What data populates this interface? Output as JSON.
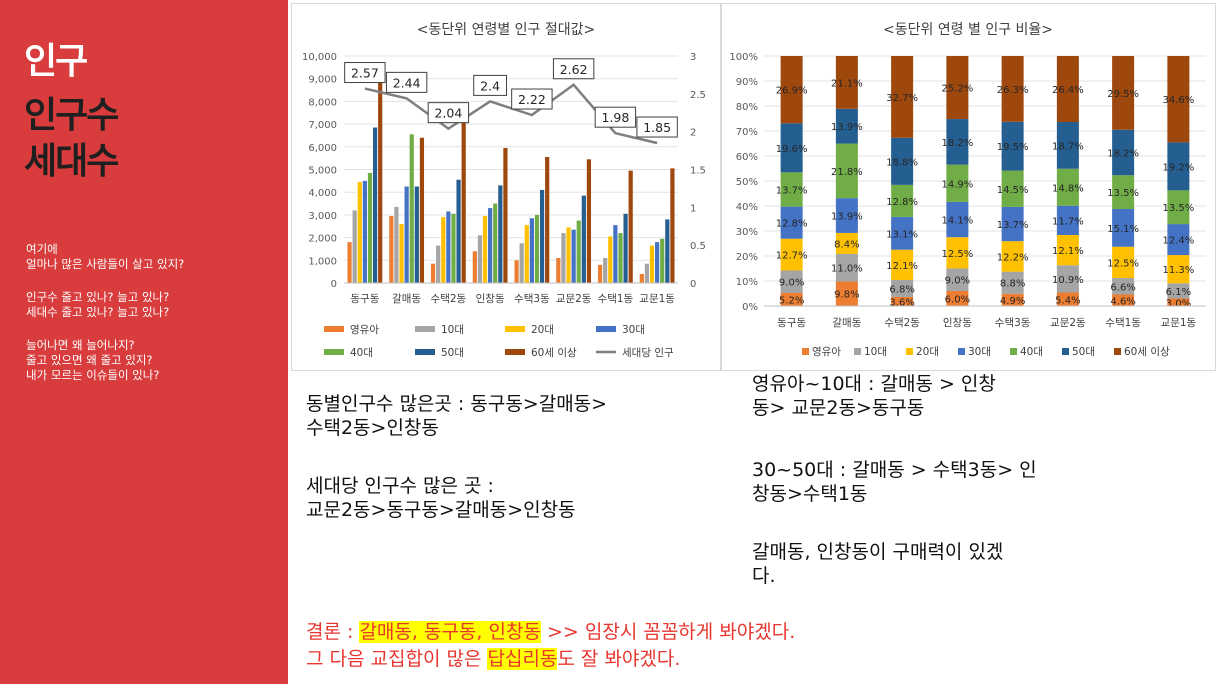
{
  "sidebar": {
    "title_lines": [
      "인구",
      "인구수",
      "세대수"
    ],
    "question_groups": [
      [
        "여기에",
        "얼마나 많은 사람들이 살고 있지?"
      ],
      [
        "인구수 줄고 있나? 늘고 있나?",
        "세대수 줄고 있나? 늘고 있나?"
      ],
      [
        "늘어나면 왜 늘어나지?",
        "줄고 있으면 왜 줄고 있지?",
        "내가 모르는 이슈들이 있나?"
      ]
    ]
  },
  "chart_data": [
    {
      "type": "bar",
      "title": "<동단위 연령별 인구 절대값>",
      "categories": [
        "동구동",
        "갈매동",
        "수택2동",
        "인창동",
        "수택3동",
        "교문2동",
        "수택1동",
        "교문1동"
      ],
      "ylim": [
        0,
        10000
      ],
      "y_ticks": [
        "0",
        "1,000",
        "2,000",
        "3,000",
        "4,000",
        "5,000",
        "6,000",
        "7,000",
        "8,000",
        "9,000",
        "10,000"
      ],
      "y2lim": [
        0,
        3
      ],
      "y2_ticks": [
        "0",
        "0.5",
        "1",
        "1.5",
        "2",
        "2.5",
        "3"
      ],
      "series": [
        {
          "name": "영유아",
          "color": "#ed7d31",
          "values": [
            1800,
            2950,
            850,
            1400,
            1000,
            1100,
            800,
            400
          ]
        },
        {
          "name": "10대",
          "color": "#a5a5a5",
          "values": [
            3200,
            3350,
            1650,
            2100,
            1750,
            2200,
            1100,
            850
          ]
        },
        {
          "name": "20대",
          "color": "#ffc000",
          "values": [
            4450,
            2600,
            2900,
            2950,
            2550,
            2450,
            2050,
            1650
          ]
        },
        {
          "name": "30대",
          "color": "#4472c4",
          "values": [
            4500,
            4250,
            3150,
            3300,
            2850,
            2350,
            2550,
            1800
          ]
        },
        {
          "name": "40대",
          "color": "#70ad47",
          "values": [
            4850,
            6550,
            3050,
            3500,
            3000,
            2750,
            2200,
            1950
          ]
        },
        {
          "name": "50대",
          "color": "#255e91",
          "values": [
            6850,
            4250,
            4550,
            4300,
            4100,
            3850,
            3050,
            2800
          ]
        },
        {
          "name": "60세 이상",
          "color": "#9e480e",
          "values": [
            9000,
            6400,
            7550,
            5950,
            5550,
            5450,
            4950,
            5050
          ]
        }
      ],
      "line_series": {
        "name": "세대당 인구",
        "color": "#7f7f7f",
        "axis": "secondary",
        "values": [
          2.57,
          2.44,
          2.04,
          2.4,
          2.22,
          2.62,
          1.98,
          1.85
        ]
      },
      "data_labels": [
        "2.57",
        "2.44",
        "2.04",
        "2.4",
        "2.22",
        "2.62",
        "1.98",
        "1.85"
      ],
      "legend": [
        "영유아",
        "10대",
        "20대",
        "30대",
        "40대",
        "50대",
        "60세 이상",
        "세대당 인구"
      ],
      "legend_position": "bottom"
    },
    {
      "type": "bar",
      "stacked": true,
      "percent": true,
      "title": "<동단위 연령 별 인구 비율>",
      "categories": [
        "동구동",
        "갈매동",
        "수택2동",
        "인창동",
        "수택3동",
        "교문2동",
        "수택1동",
        "교문1동"
      ],
      "ylim": [
        0,
        100
      ],
      "y_ticks": [
        "0%",
        "10%",
        "20%",
        "30%",
        "40%",
        "50%",
        "60%",
        "70%",
        "80%",
        "90%",
        "100%"
      ],
      "series": [
        {
          "name": "영유아",
          "color": "#ed7d31",
          "values": [
            5.2,
            9.8,
            3.6,
            6.0,
            4.9,
            5.4,
            4.6,
            3.0
          ],
          "labels": [
            "5.2%",
            "9.8%",
            "3.6%",
            "6.0%",
            "4.9%",
            "5.4%",
            "4.6%",
            "3.0%"
          ]
        },
        {
          "name": "10대",
          "color": "#a5a5a5",
          "values": [
            9.0,
            11.0,
            6.8,
            9.0,
            8.8,
            10.9,
            6.6,
            6.1
          ],
          "labels": [
            "9.0%",
            "11.0%",
            "6.8%",
            "9.0%",
            "8.8%",
            "10.9%",
            "6.6%",
            "6.1%"
          ]
        },
        {
          "name": "20대",
          "color": "#ffc000",
          "values": [
            12.7,
            8.4,
            12.1,
            12.5,
            12.2,
            12.1,
            12.5,
            11.3
          ],
          "labels": [
            "12.7%",
            "8.4%",
            "12.1%",
            "12.5%",
            "12.2%",
            "12.1%",
            "12.5%",
            "11.3%"
          ]
        },
        {
          "name": "30대",
          "color": "#4472c4",
          "values": [
            12.8,
            13.9,
            13.1,
            14.1,
            13.7,
            11.7,
            15.1,
            12.4
          ],
          "labels": [
            "12.8%",
            "13.9%",
            "13.1%",
            "14.1%",
            "13.7%",
            "11.7%",
            "15.1%",
            "12.4%"
          ]
        },
        {
          "name": "40대",
          "color": "#70ad47",
          "values": [
            13.7,
            21.8,
            12.8,
            14.9,
            14.5,
            14.8,
            13.5,
            13.5
          ],
          "labels": [
            "13.7%",
            "21.8%",
            "12.8%",
            "14.9%",
            "14.5%",
            "14.8%",
            "13.5%",
            "13.5%"
          ]
        },
        {
          "name": "50대",
          "color": "#255e91",
          "values": [
            19.6,
            13.9,
            18.8,
            18.2,
            19.5,
            18.7,
            18.2,
            19.2
          ],
          "labels": [
            "19.6%",
            "13.9%",
            "18.8%",
            "18.2%",
            "19.5%",
            "18.7%",
            "18.2%",
            "19.2%"
          ]
        },
        {
          "name": "60세 이상",
          "color": "#9e480e",
          "values": [
            26.9,
            21.1,
            32.7,
            25.2,
            26.3,
            26.4,
            29.5,
            34.6
          ],
          "labels": [
            "26.9%",
            "21.1%",
            "32.7%",
            "25.2%",
            "26.3%",
            "26.4%",
            "29.5%",
            "34.6%"
          ]
        }
      ],
      "legend": [
        "영유아",
        "10대",
        "20대",
        "30대",
        "40대",
        "50대",
        "60세 이상"
      ],
      "legend_position": "bottom"
    }
  ],
  "notes": {
    "left_block_1": [
      "동별인구수 많은곳 : 동구동>갈매동>",
      "수택2동>인창동"
    ],
    "left_block_2": [
      "세대당 인구수 많은 곳 :",
      "교문2동>동구동>갈매동>인창동"
    ],
    "right_block_1": [
      "영유아~10대 :  갈매동  >  인창",
      "동>  교문2동>동구동"
    ],
    "right_block_2": [
      "30~50대 : 갈매동  >  수택3동>  인",
      "창동>수택1동"
    ],
    "right_block_3": [
      "갈매동, 인창동이 구매력이 있겠",
      "다."
    ]
  },
  "conclusion": {
    "line1_prefix": "결론 : ",
    "line1_highlight": "갈매동, 동구동, 인창동",
    "line1_suffix": " >>   임장시 꼼꼼하게 봐야겠다.",
    "line2_prefix": "그 다음 교집합이 많은 ",
    "line2_highlight": "답십리동",
    "line2_suffix": "도 잘 봐야겠다."
  }
}
